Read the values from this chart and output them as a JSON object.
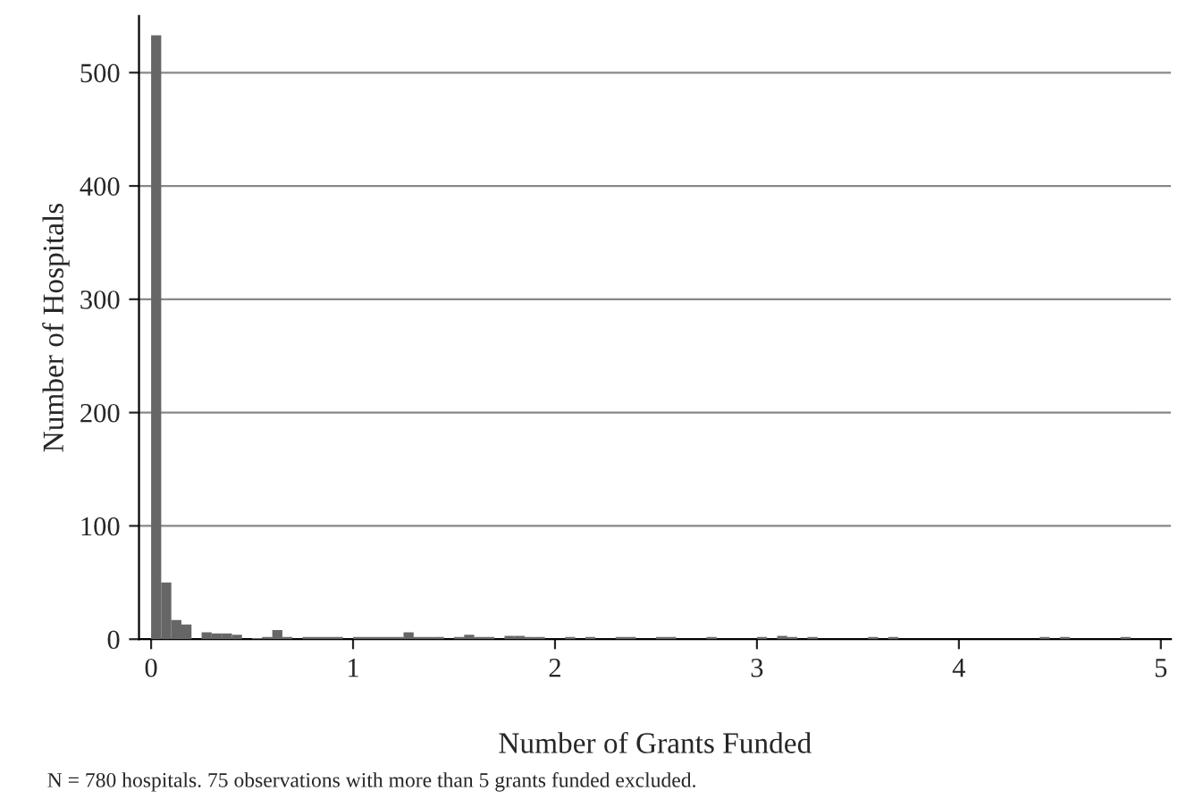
{
  "chart_data": {
    "type": "histogram",
    "xlabel": "Number of Grants Funded",
    "ylabel": "Number of Hospitals",
    "annotations": [
      "N = 780 hospitals. 75 observations with more than 5 grants funded excluded."
    ],
    "bins": [
      0,
      0.05,
      0.1,
      0.15,
      0.2,
      0.25,
      0.3,
      0.35,
      0.4,
      0.45,
      0.5,
      0.55,
      0.6,
      0.65,
      0.7,
      0.75,
      0.8,
      0.85,
      0.9,
      0.95,
      1,
      1.05,
      1.1,
      1.15,
      1.2,
      1.25,
      1.3,
      1.35,
      1.4,
      1.45,
      1.5,
      1.55,
      1.6,
      1.65,
      1.7,
      1.75,
      1.8,
      1.85,
      1.9,
      1.95,
      2,
      2.05,
      2.1,
      2.15,
      2.2,
      2.25,
      2.3,
      2.35,
      2.4,
      2.45,
      2.5,
      2.55,
      2.6,
      2.65,
      2.7,
      2.75,
      2.8,
      2.85,
      2.9,
      2.95,
      3,
      3.05,
      3.1,
      3.15,
      3.2,
      3.25,
      3.3,
      3.35,
      3.4,
      3.45,
      3.5,
      3.55,
      3.6,
      3.65,
      3.7,
      3.75,
      3.8,
      3.85,
      3.9,
      3.95,
      4,
      4.05,
      4.1,
      4.15,
      4.2,
      4.25,
      4.3,
      4.35,
      4.4,
      4.45,
      4.5,
      4.55,
      4.6,
      4.65,
      4.7,
      4.75,
      4.8,
      4.85,
      4.9,
      4.95,
      5
    ],
    "values": [
      533,
      50,
      17,
      13,
      0,
      6,
      5,
      5,
      4,
      0,
      1,
      2,
      8,
      2,
      0,
      2,
      2,
      2,
      2,
      0,
      2,
      2,
      2,
      2,
      2,
      6,
      2,
      2,
      2,
      0,
      2,
      4,
      2,
      2,
      0,
      3,
      3,
      2,
      2,
      0,
      0,
      2,
      0,
      2,
      0,
      0,
      2,
      2,
      0,
      0,
      2,
      2,
      0,
      0,
      0,
      2,
      0,
      0,
      0,
      0,
      2,
      0,
      3,
      2,
      0,
      2,
      0,
      0,
      0,
      0,
      0,
      2,
      0,
      2,
      0,
      0,
      0,
      0,
      0,
      0,
      0,
      0,
      0,
      0,
      0,
      0,
      0,
      0,
      2,
      0,
      2,
      0,
      0,
      0,
      0,
      0,
      2,
      0,
      0,
      0
    ],
    "color": "#666666",
    "xlim": [
      -0.06,
      5.05
    ],
    "ylim": [
      0,
      550
    ],
    "xticks": [
      0,
      1,
      2,
      3,
      4,
      5
    ],
    "yticks": [
      0,
      100,
      200,
      300,
      400,
      500
    ],
    "grid": "y"
  }
}
